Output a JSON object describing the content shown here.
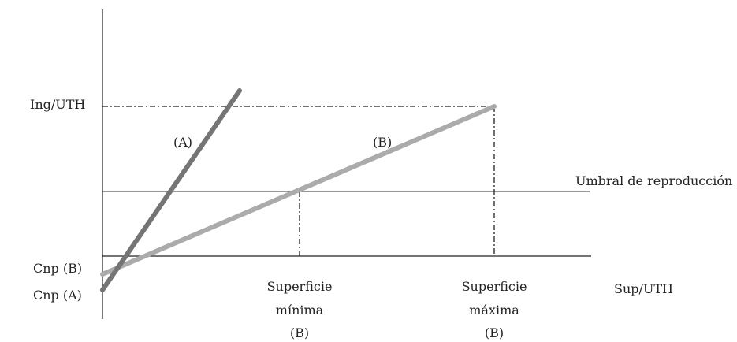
{
  "labels": {
    "y_axis": "Ing/UTH",
    "x_axis": "Sup/UTH",
    "threshold": "Umbral de reproducción",
    "line_a": "(A)",
    "line_b": "(B)",
    "cnp_b": "Cnp (B)",
    "cnp_a": "Cnp (A)",
    "sup_min_1": "Superficie",
    "sup_min_2": "mínima",
    "sup_min_3": "(B)",
    "sup_max_1": "Superficie",
    "sup_max_2": "máxima",
    "sup_max_3": "(B)"
  },
  "colors": {
    "line_a": "#757575",
    "line_b": "#ababab",
    "axis": "#222222"
  }
}
